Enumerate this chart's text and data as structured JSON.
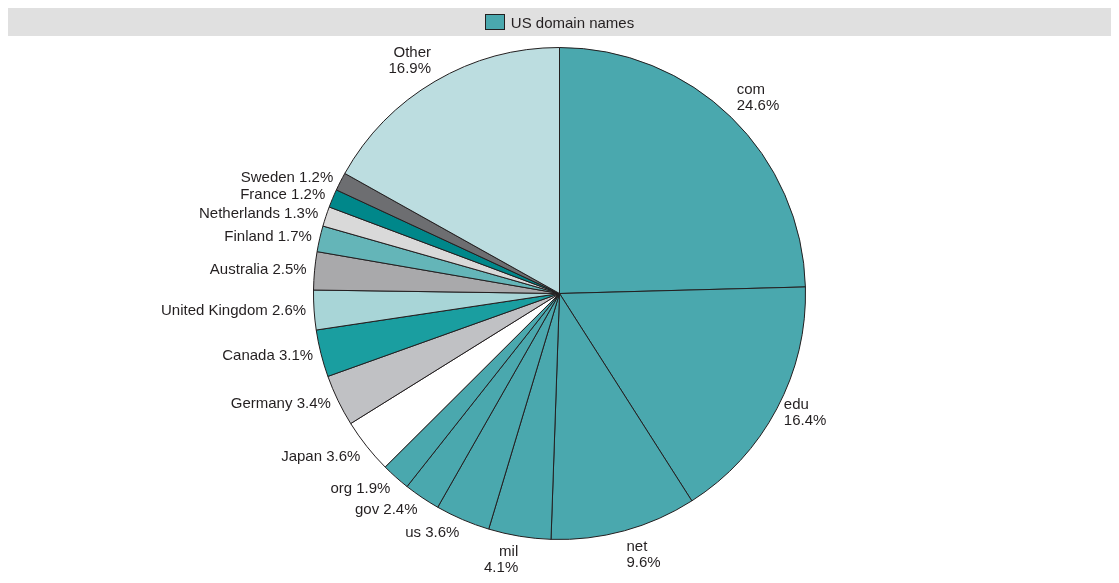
{
  "chart_data": {
    "type": "pie",
    "legend_title": "US domain names",
    "categories": [
      "com",
      "edu",
      "net",
      "mil",
      "us",
      "gov",
      "org",
      "Japan",
      "Germany",
      "Canada",
      "United Kingdom",
      "Australia",
      "Finland",
      "Netherlands",
      "France",
      "Sweden",
      "Other"
    ],
    "values": [
      24.6,
      16.4,
      9.6,
      4.1,
      3.6,
      2.4,
      1.9,
      3.6,
      3.4,
      3.1,
      2.6,
      2.5,
      1.7,
      1.3,
      1.2,
      1.2,
      16.9
    ],
    "value_labels": [
      "24.6%",
      "16.4%",
      "9.6%",
      "4.1%",
      "3.6%",
      "2.4%",
      "1.9%",
      "3.6%",
      "3.4%",
      "3.1%",
      "2.6%",
      "2.5%",
      "1.7%",
      "1.3%",
      "1.2%",
      "1.2%",
      "16.9%"
    ],
    "colors": [
      "#4aa8ae",
      "#4aa8ae",
      "#4aa8ae",
      "#4aa8ae",
      "#4aa8ae",
      "#4aa8ae",
      "#4aa8ae",
      "#ffffff",
      "#c0c1c4",
      "#1a9ea0",
      "#a8d5d7",
      "#a9a9ab",
      "#64b5b8",
      "#d9d9d9",
      "#00878a",
      "#6d6e71",
      "#bcdde0"
    ]
  }
}
